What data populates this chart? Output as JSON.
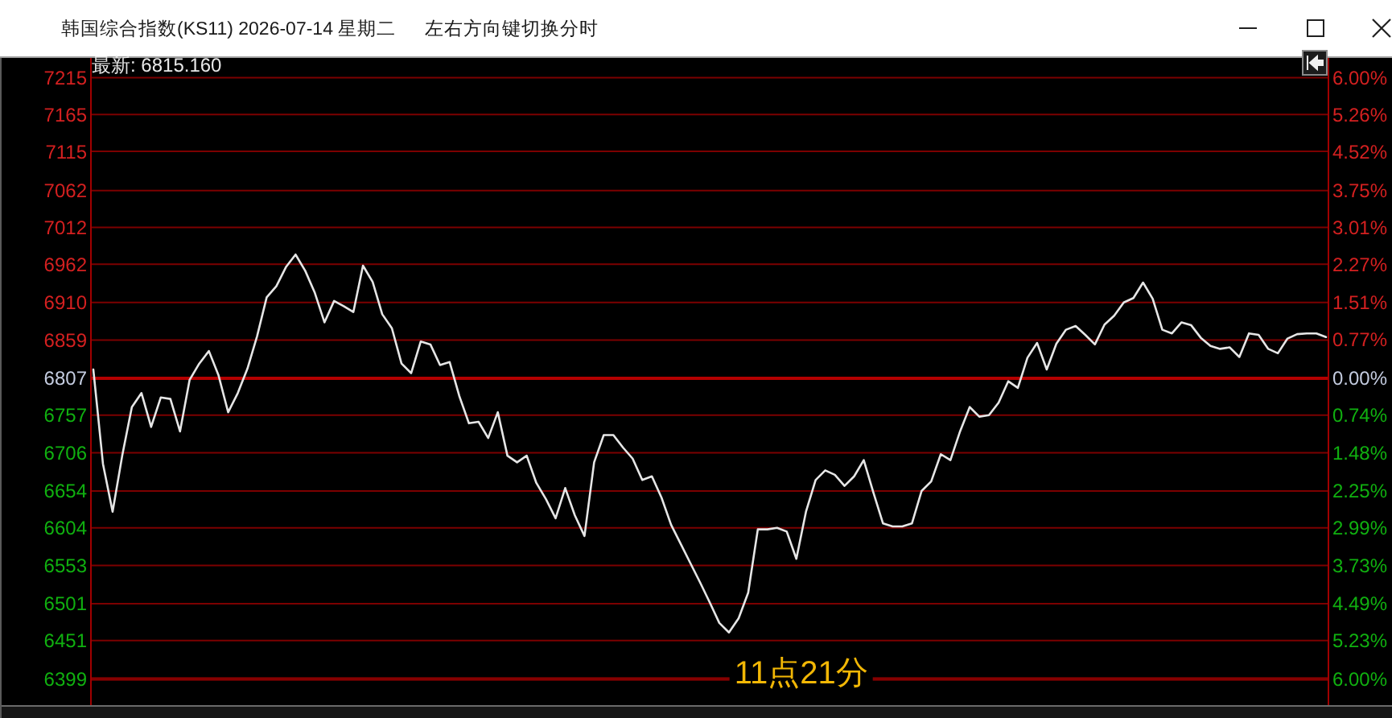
{
  "chart_data": {
    "type": "line",
    "title": "韩国综合指数(KS11) 2026-07-14 星期二",
    "subtitle": "左右方向键切换分时",
    "annotations": [
      "最新: 6815.160",
      "11点21分"
    ],
    "categories": [
      null,
      null,
      null,
      null,
      null,
      null,
      null,
      null,
      null,
      null,
      null,
      null,
      null,
      null,
      null,
      null,
      null,
      null,
      null,
      null,
      null,
      null,
      null,
      null,
      null,
      null,
      null,
      null,
      null,
      null,
      null,
      null,
      null,
      null,
      null,
      null,
      null,
      null,
      null,
      null,
      null,
      null,
      null,
      null,
      null,
      null,
      null,
      null,
      null,
      null,
      null,
      null,
      null,
      null,
      null,
      null,
      null,
      null,
      null,
      null,
      null,
      null,
      null,
      null,
      null,
      null,
      null,
      null,
      null,
      null,
      null,
      null,
      null,
      null,
      null,
      null,
      null,
      null,
      null,
      null,
      null,
      null,
      null,
      null,
      null,
      null,
      null,
      null,
      null,
      null,
      null,
      null,
      null,
      null,
      null,
      null,
      null,
      null,
      null,
      null,
      null,
      null,
      null,
      null,
      null,
      null,
      null,
      null,
      null,
      null,
      null,
      null,
      null,
      null,
      null,
      null,
      null,
      null,
      null,
      null,
      null,
      null,
      null,
      null,
      null,
      null,
      null,
      null,
      null
    ],
    "series": [
      {
        "color": "#e6e6e6",
        "values": [
          6819,
          6691,
          6626,
          6702,
          6768,
          6787,
          6741,
          6781,
          6779,
          6735,
          6805,
          6827,
          6844,
          6811,
          6761,
          6787,
          6820,
          6864,
          6917,
          6932,
          6958,
          6975,
          6953,
          6923,
          6883,
          6912,
          6905,
          6897,
          6960,
          6938,
          6894,
          6875,
          6827,
          6814,
          6857,
          6853,
          6825,
          6829,
          6783,
          6746,
          6748,
          6726,
          6761,
          6702,
          6693,
          6702,
          6665,
          6643,
          6617,
          6658,
          6621,
          6593,
          6693,
          6730,
          6730,
          6713,
          6698,
          6669,
          6674,
          6645,
          6608,
          6582,
          6556,
          6530,
          6503,
          6475,
          6462,
          6481,
          6516,
          6602,
          6602,
          6604,
          6599,
          6562,
          6626,
          6669,
          6682,
          6676,
          6661,
          6674,
          6696,
          6652,
          6610,
          6606,
          6606,
          6610,
          6654,
          6667,
          6704,
          6696,
          6735,
          6768,
          6755,
          6757,
          6774,
          6803,
          6794,
          6835,
          6855,
          6819,
          6854,
          6873,
          6878,
          6866,
          6853,
          6880,
          6892,
          6910,
          6916,
          6937,
          6915,
          6873,
          6868,
          6883,
          6879,
          6862,
          6851,
          6847,
          6849,
          6836,
          6868,
          6866,
          6847,
          6841,
          6861,
          6867,
          6868,
          6868,
          6863
        ]
      }
    ],
    "ylim": [
      6399,
      7215
    ],
    "yticks": [
      7215,
      7165,
      7115,
      7062,
      7012,
      6962,
      6910,
      6859,
      6807,
      6757,
      6706,
      6654,
      6604,
      6553,
      6501,
      6451,
      6399
    ],
    "y2lim": [
      -6,
      6
    ],
    "y2ticks": [
      {
        "value": 6,
        "label": "6.00%"
      },
      {
        "value": 5.26,
        "label": "5.26%"
      },
      {
        "value": 4.52,
        "label": "4.52%"
      },
      {
        "value": 3.75,
        "label": "3.75%"
      },
      {
        "value": 3.01,
        "label": "3.01%"
      },
      {
        "value": 2.27,
        "label": "2.27%"
      },
      {
        "value": 1.51,
        "label": "1.51%"
      },
      {
        "value": 0.77,
        "label": "0.77%"
      },
      {
        "value": 0,
        "label": "0.00%"
      },
      {
        "value": -0.74,
        "label": "0.74%"
      },
      {
        "value": -1.48,
        "label": "1.48%"
      },
      {
        "value": -2.25,
        "label": "2.25%"
      },
      {
        "value": -2.99,
        "label": "2.99%"
      },
      {
        "value": -3.73,
        "label": "3.73%"
      },
      {
        "value": -4.49,
        "label": "4.49%"
      },
      {
        "value": -5.23,
        "label": "5.23%"
      },
      {
        "value": -6,
        "label": "6.00%"
      }
    ],
    "grid": "y",
    "ref_lines": [
      {
        "axis": "y",
        "value": 6807,
        "color": "#b40000"
      }
    ]
  }
}
